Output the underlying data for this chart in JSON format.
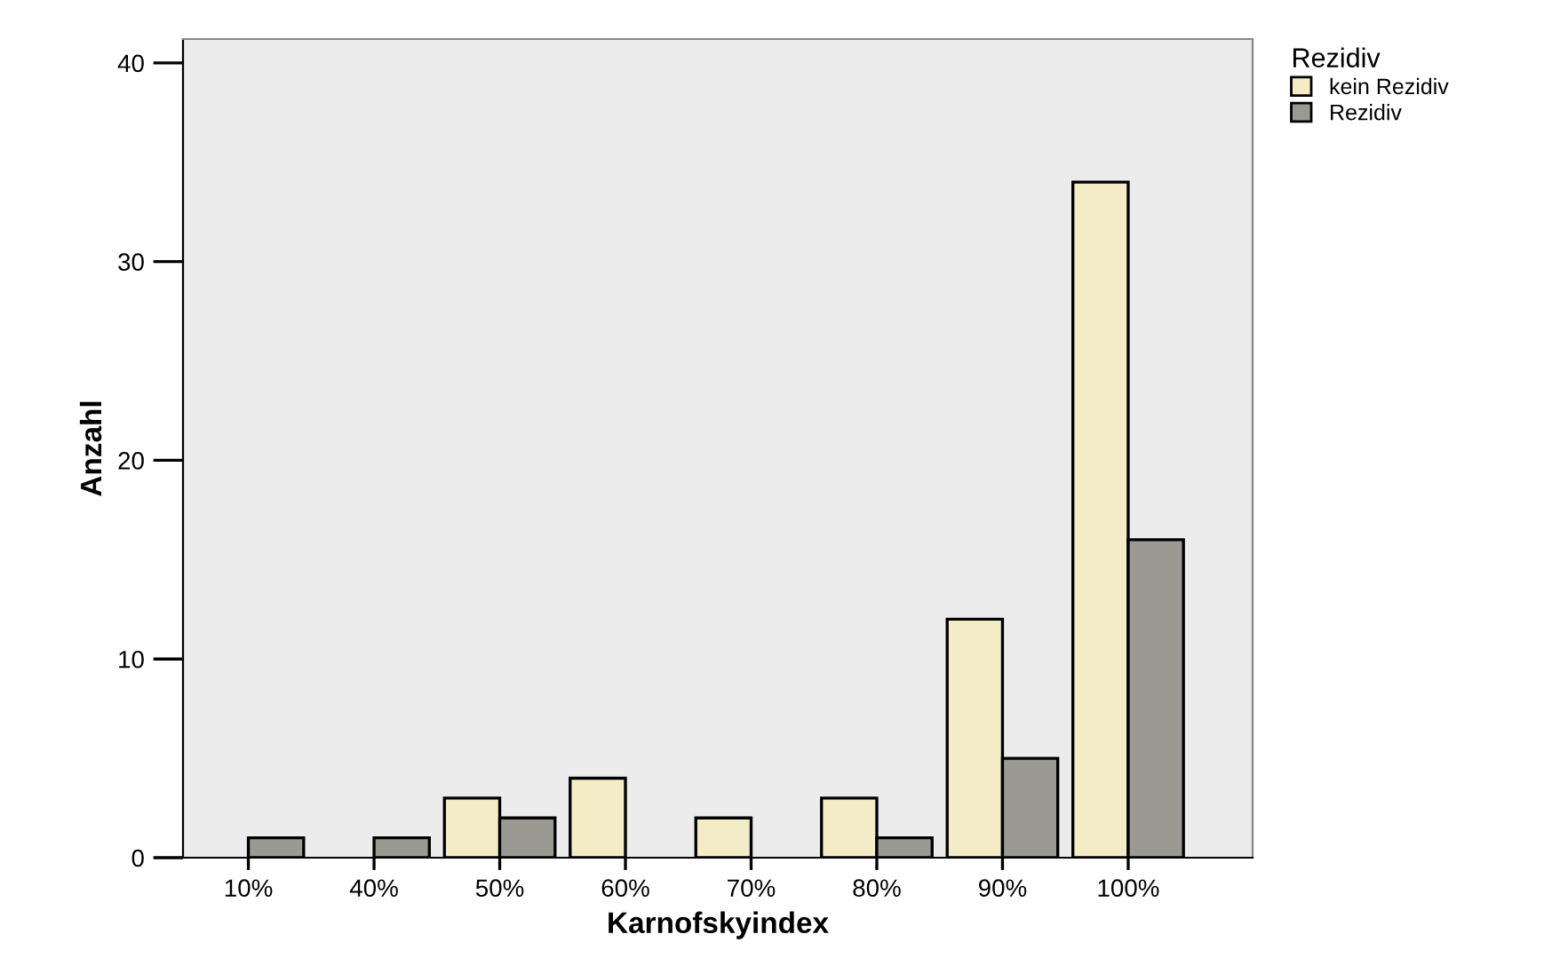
{
  "chart_data": {
    "type": "bar",
    "xlabel": "Karnofskyindex",
    "ylabel": "Anzahl",
    "legend_title": "Rezidiv",
    "categories": [
      "10%",
      "40%",
      "50%",
      "60%",
      "70%",
      "80%",
      "90%",
      "100%"
    ],
    "series": [
      {
        "name": "kein Rezidiv",
        "color": "#f3ecc6",
        "values": [
          null,
          null,
          3,
          4,
          2,
          3,
          12,
          34
        ]
      },
      {
        "name": "Rezidiv",
        "color": "#9a9a92",
        "values": [
          1,
          1,
          2,
          null,
          null,
          1,
          5,
          16
        ]
      }
    ],
    "ylim": [
      0,
      41.2
    ],
    "yticks": [
      0,
      10,
      20,
      30,
      40
    ],
    "grid": false,
    "legend": "top right"
  }
}
